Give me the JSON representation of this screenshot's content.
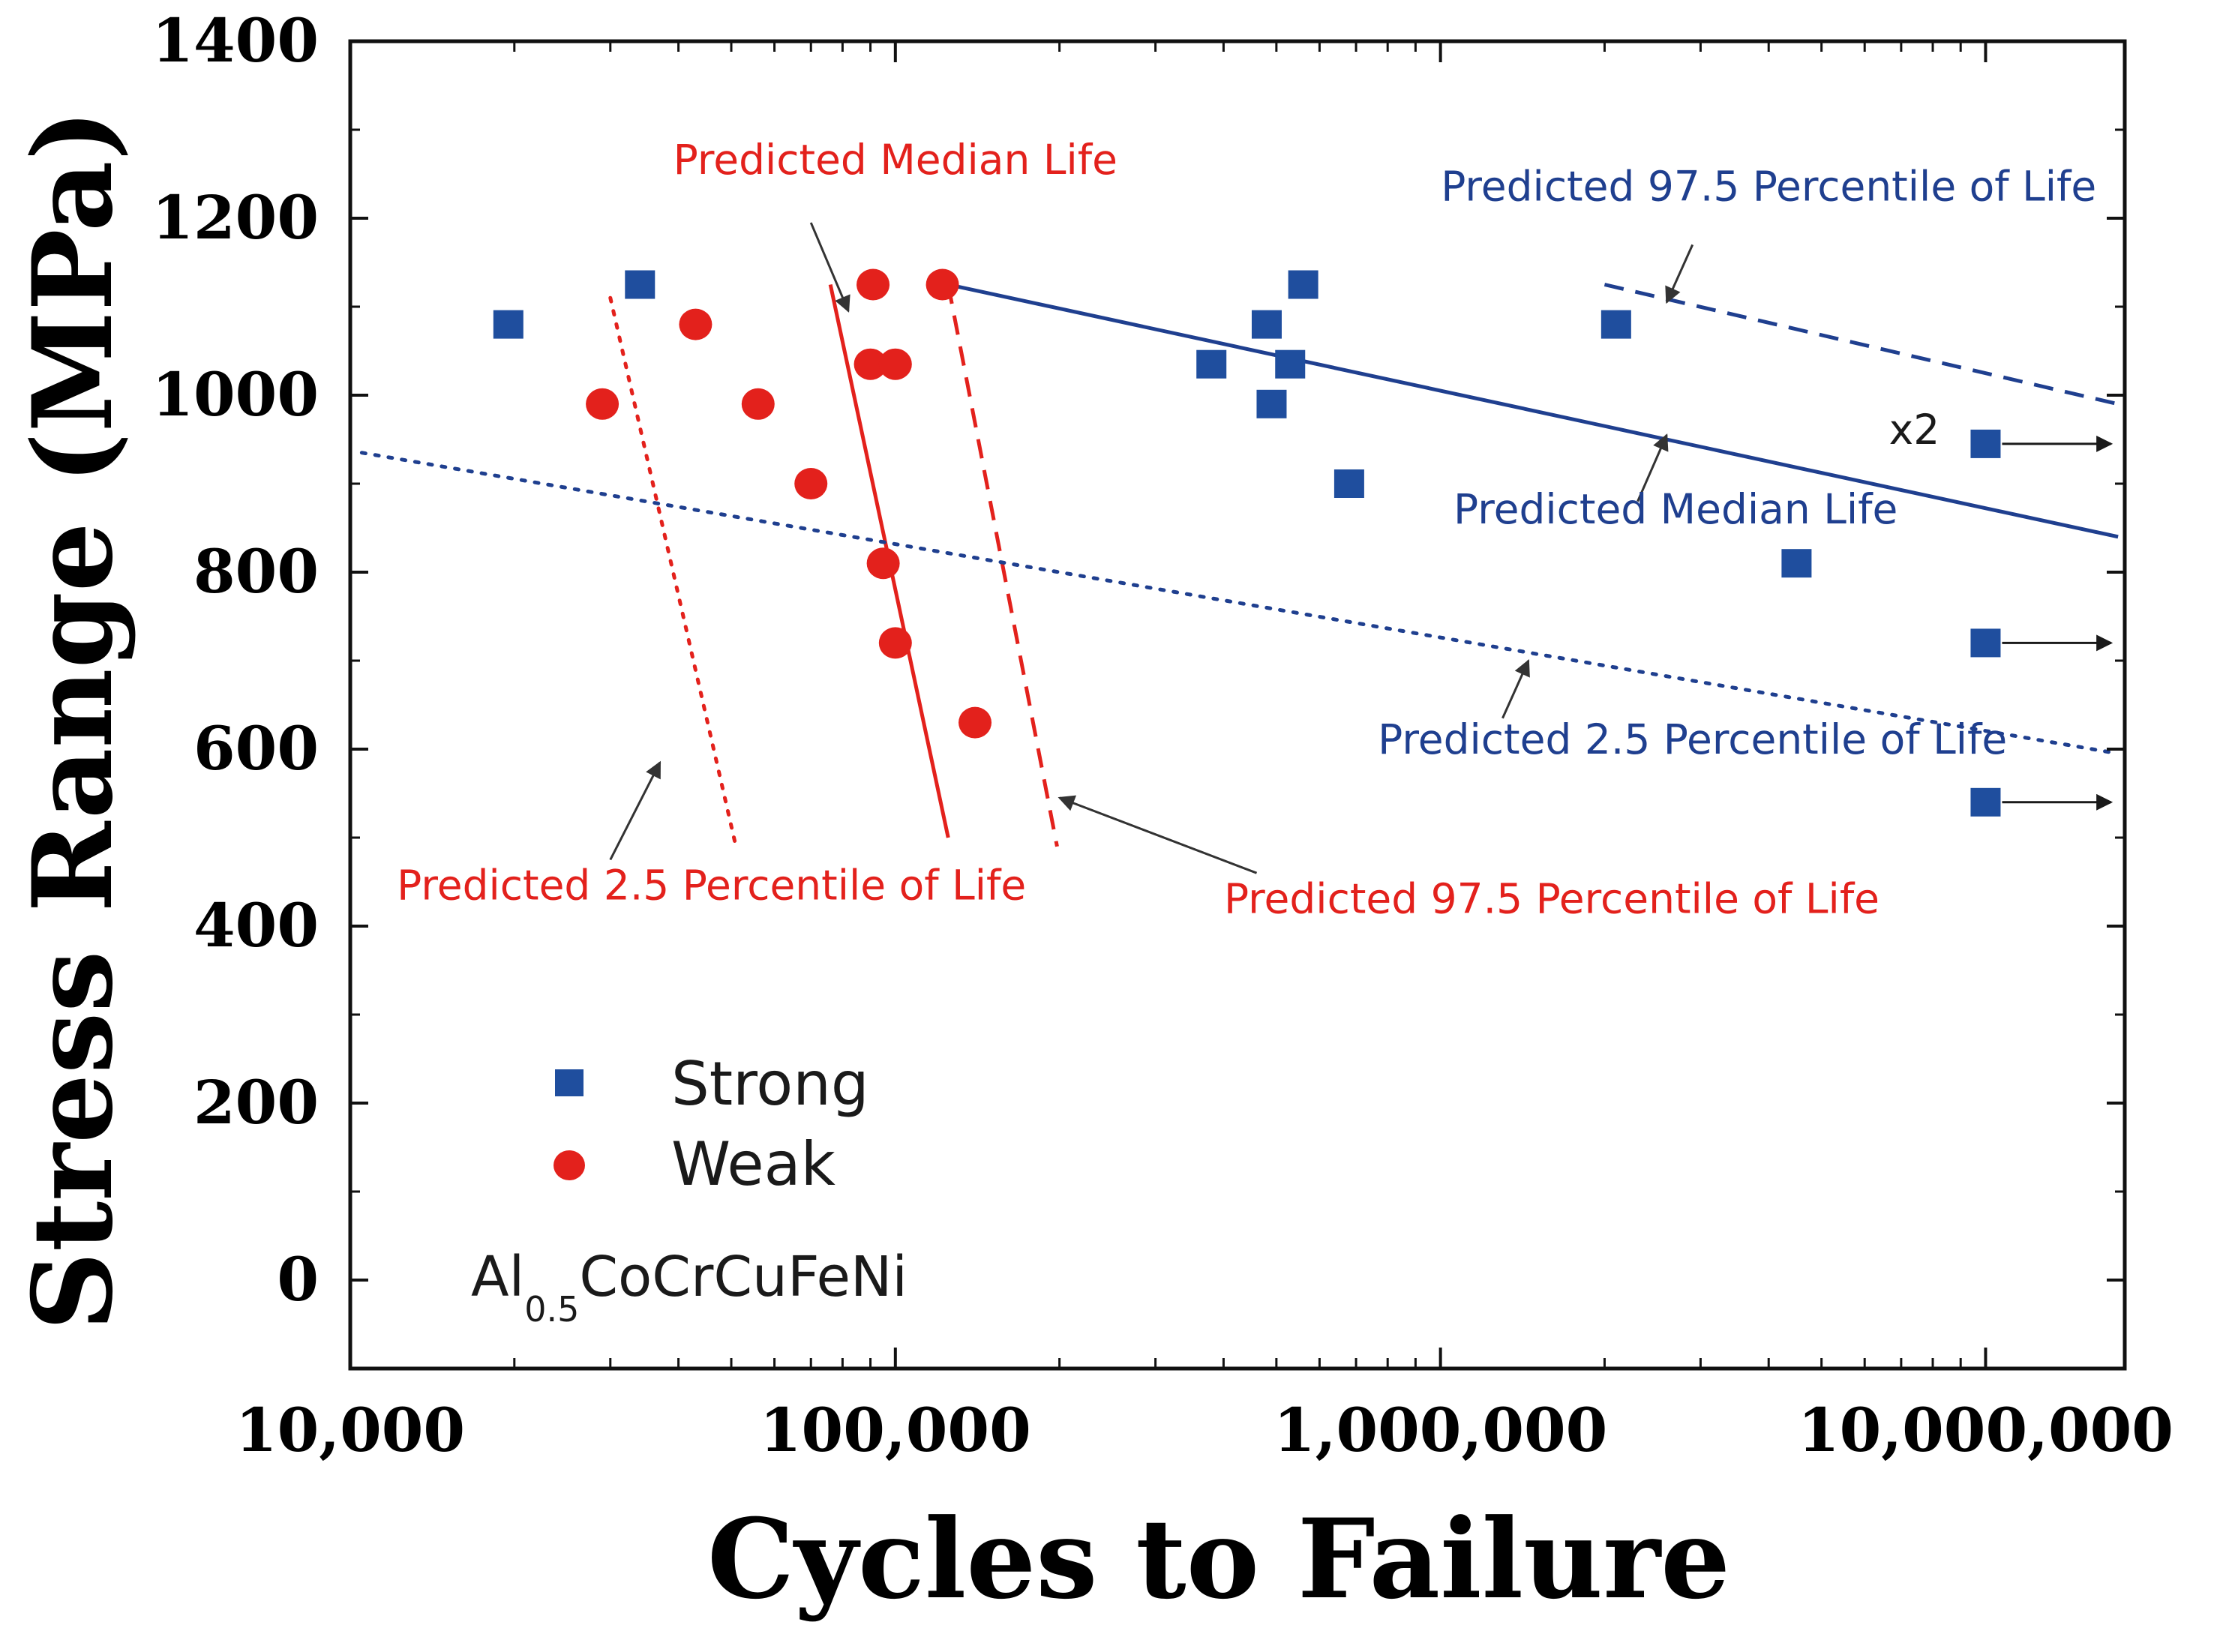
{
  "chart_data": {
    "type": "scatter",
    "xlabel": "Cycles to Failure",
    "ylabel": "Stress Range (MPa)",
    "x_scale": "log",
    "xlim": [
      10000,
      18000000
    ],
    "ylim": [
      -100,
      1400
    ],
    "x_ticks": [
      {
        "value": 10000,
        "label": "10,000"
      },
      {
        "value": 100000,
        "label": "100,000"
      },
      {
        "value": 1000000,
        "label": "1,000,000"
      },
      {
        "value": 10000000,
        "label": "10,000,000"
      }
    ],
    "y_ticks": [
      {
        "value": 1400,
        "label": "1400"
      },
      {
        "value": 1200,
        "label": "1200"
      },
      {
        "value": 1000,
        "label": "1000"
      },
      {
        "value": 800,
        "label": "800"
      },
      {
        "value": 600,
        "label": "600"
      },
      {
        "value": 400,
        "label": "400"
      },
      {
        "value": 200,
        "label": "200"
      },
      {
        "value": 0,
        "label": "0"
      }
    ],
    "series": [
      {
        "name": "Strong",
        "marker": "square",
        "color": "#1f4e9e",
        "points": [
          [
            19500,
            1080
          ],
          [
            34000,
            1125
          ],
          [
            380000,
            1035
          ],
          [
            480000,
            1080
          ],
          [
            490000,
            990
          ],
          [
            530000,
            1035
          ],
          [
            560000,
            1125
          ],
          [
            680000,
            900
          ],
          [
            2100000,
            1080
          ],
          [
            4500000,
            810
          ],
          [
            10000000,
            945,
            "runout"
          ],
          [
            10000000,
            720,
            "runout"
          ],
          [
            10000000,
            540,
            "runout"
          ]
        ]
      },
      {
        "name": "Weak",
        "marker": "circle",
        "color": "#e3211c",
        "points": [
          [
            29000,
            990
          ],
          [
            43000,
            1080
          ],
          [
            56000,
            990
          ],
          [
            70000,
            900
          ],
          [
            91000,
            1125
          ],
          [
            90000,
            1035
          ],
          [
            95000,
            810
          ],
          [
            100000,
            1035
          ],
          [
            100000,
            720
          ],
          [
            122000,
            1125
          ],
          [
            140000,
            630
          ]
        ]
      }
    ],
    "fitted_lines": [
      {
        "name": "Weak - Predicted 2.5 Percentile of Life",
        "style": "dotted",
        "color": "#e3211c",
        "points": [
          [
            30000,
            1110
          ],
          [
            51000,
            490
          ]
        ]
      },
      {
        "name": "Weak - Predicted Median Life",
        "style": "solid",
        "color": "#e3211c",
        "points": [
          [
            76000,
            1125
          ],
          [
            125000,
            500
          ]
        ]
      },
      {
        "name": "Weak - Predicted 97.5 Percentile of Life",
        "style": "dashed",
        "color": "#e3211c",
        "points": [
          [
            125000,
            1125
          ],
          [
            198000,
            490
          ]
        ]
      },
      {
        "name": "Strong - Predicted Median Life",
        "style": "solid",
        "color": "#1f3f8f",
        "points": [
          [
            125000,
            1125
          ],
          [
            17500000,
            840
          ]
        ]
      },
      {
        "name": "Strong - Predicted 97.5 Percentile of Life",
        "style": "dashed",
        "color": "#1f3f8f",
        "points": [
          [
            2000000,
            1125
          ],
          [
            17500000,
            990
          ]
        ]
      },
      {
        "name": "Strong - Predicted 2.5 Percentile of Life",
        "style": "dotted",
        "color": "#1f3f8f",
        "points": [
          [
            10500,
            935
          ],
          [
            17500000,
            595
          ]
        ]
      }
    ],
    "annotations": [
      {
        "text": "Predicted Median Life",
        "color": "#e3211c",
        "x": 100000,
        "y": 1250,
        "arrow_from": [
          70000,
          1195
        ],
        "arrow_to": [
          82000,
          1095
        ]
      },
      {
        "text": "Predicted 97.5 Percentile of Life",
        "color": "#1f3f8f",
        "x": 4000000,
        "y": 1220,
        "arrow_from": [
          2900000,
          1170
        ],
        "arrow_to": [
          2600000,
          1105
        ]
      },
      {
        "text": "x2",
        "color": "#1a1a1a",
        "x": 7400000,
        "y": 945
      },
      {
        "text": "Predicted Median Life",
        "color": "#1f3f8f",
        "x": 2700000,
        "y": 855,
        "arrow_from": [
          2300000,
          880
        ],
        "arrow_to": [
          2600000,
          955
        ]
      },
      {
        "text": "Predicted 2.5 Percentile of Life",
        "color": "#1f3f8f",
        "x": 2900000,
        "y": 595,
        "arrow_from": [
          1300000,
          635
        ],
        "arrow_to": [
          1450000,
          700
        ]
      },
      {
        "text": "Predicted 2.5 Percentile of Life",
        "color": "#e3211c",
        "x": 46000,
        "y": 430,
        "arrow_from": [
          30000,
          475
        ],
        "arrow_to": [
          37000,
          585
        ]
      },
      {
        "text": "Predicted 97.5 Percentile of Life",
        "color": "#e3211c",
        "x": 1600000,
        "y": 415,
        "arrow_from": [
          460000,
          460
        ],
        "arrow_to": [
          200000,
          545
        ]
      }
    ],
    "runout_arrow_x_end": 17000000,
    "legend": {
      "position": "bottom-left",
      "entries": [
        "Strong",
        "Weak"
      ]
    },
    "material": {
      "base": "Al",
      "subscript": "0.5",
      "rest": "CoCrCuFeNi"
    }
  }
}
